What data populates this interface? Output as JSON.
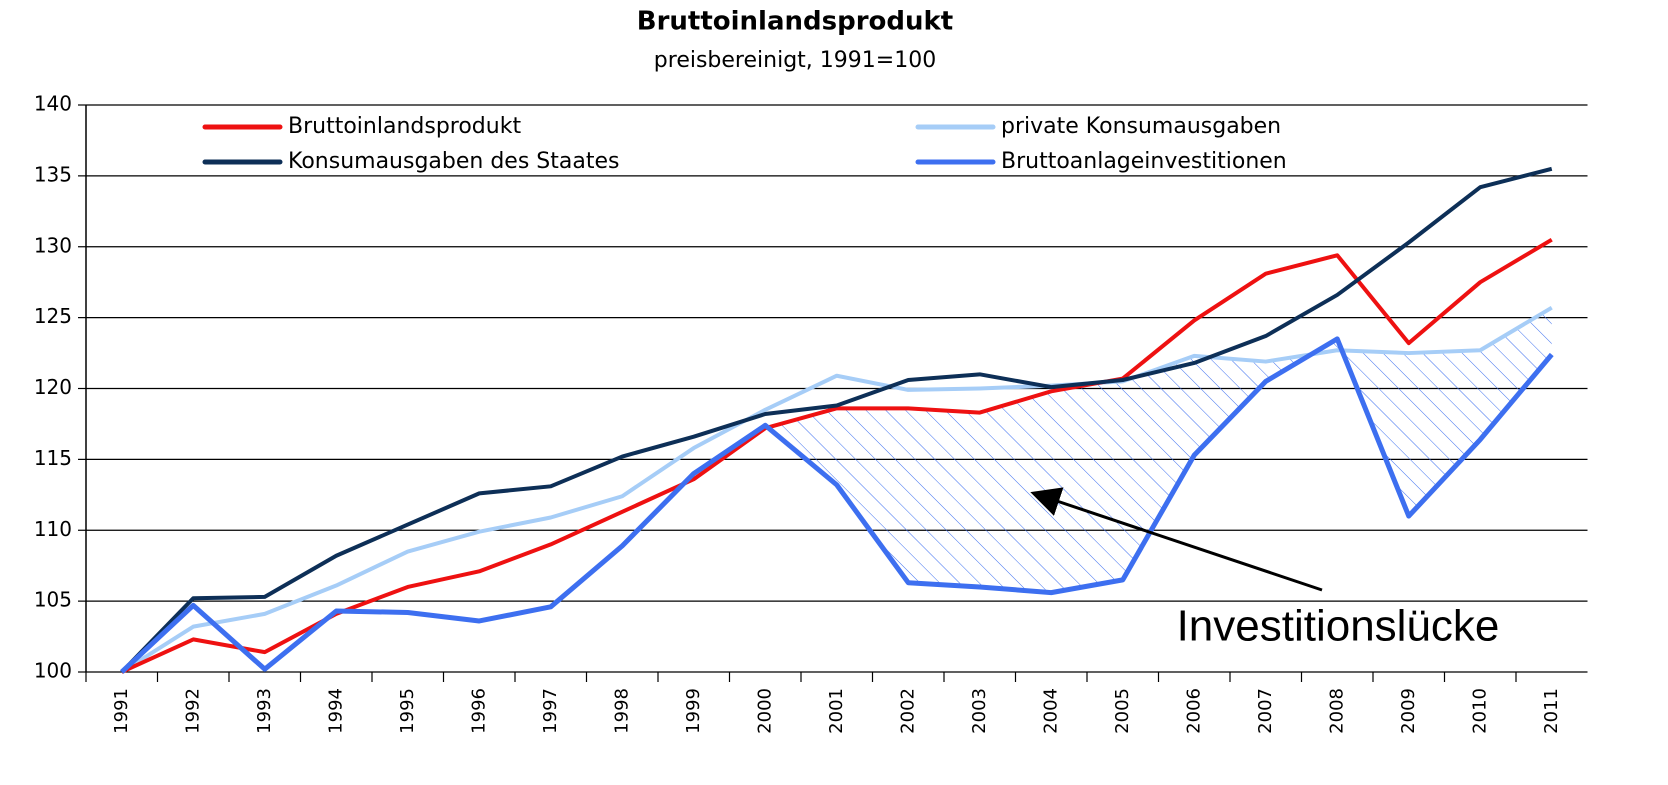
{
  "chart_data": {
    "type": "line",
    "title": "Bruttoinlandsprodukt",
    "subtitle": "preisbereinigt, 1991=100",
    "annotation": "Investitionslücke",
    "categories": [
      "1991",
      "1992",
      "1993",
      "1994",
      "1995",
      "1996",
      "1997",
      "1998",
      "1999",
      "2000",
      "2001",
      "2002",
      "2003",
      "2004",
      "2005",
      "2006",
      "2007",
      "2008",
      "2009",
      "2010",
      "2011"
    ],
    "series": [
      {
        "name": "Bruttoinlandsprodukt",
        "color": "#ee1111",
        "values": [
          100,
          102.3,
          101.4,
          104.1,
          106,
          107.1,
          109,
          111.3,
          113.6,
          117.2,
          118.6,
          118.6,
          118.3,
          119.8,
          120.7,
          124.8,
          128.1,
          129.4,
          123.2,
          127.5,
          130.5
        ]
      },
      {
        "name": "private Konsumausgaben",
        "color": "#a6cdf7",
        "values": [
          100,
          103.2,
          104.1,
          106.1,
          108.5,
          109.9,
          110.9,
          112.4,
          115.8,
          118.5,
          120.9,
          119.9,
          120,
          120.2,
          120.5,
          122.3,
          121.9,
          122.7,
          122.5,
          122.7,
          125.7
        ]
      },
      {
        "name": "Konsumausgaben des Staates",
        "color": "#0d2f57",
        "values": [
          100,
          105.2,
          105.3,
          108.2,
          110.4,
          112.6,
          113.1,
          115.2,
          116.6,
          118.2,
          118.8,
          120.6,
          121,
          120.1,
          120.6,
          121.8,
          123.7,
          126.6,
          130.3,
          134.2,
          135.5
        ]
      },
      {
        "name": "Bruttoanlageinvestitionen",
        "color": "#3d6ff0",
        "values": [
          100,
          104.7,
          100.2,
          104.3,
          104.2,
          103.6,
          104.6,
          108.9,
          114,
          117.4,
          113.2,
          106.3,
          106,
          105.6,
          106.5,
          115.3,
          120.5,
          123.5,
          111,
          116.4,
          122.4
        ]
      }
    ],
    "ylim": [
      100,
      140
    ],
    "yticks": [
      100,
      105,
      110,
      115,
      120,
      125,
      130,
      135,
      140
    ],
    "grid": true,
    "legend": "top"
  }
}
